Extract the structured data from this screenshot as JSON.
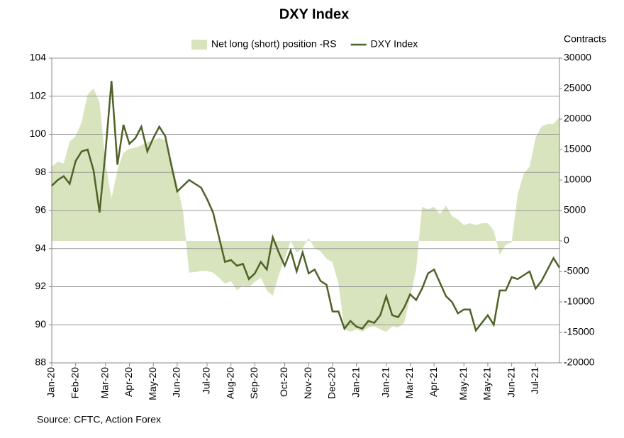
{
  "chart_data": {
    "type": "line",
    "title": "DXY Index",
    "y2_label": "Contracts",
    "source": "Source: CFTC, Action Forex",
    "legend": "top",
    "categories": [
      "Jan-20",
      null,
      null,
      null,
      "Feb-20",
      null,
      null,
      null,
      null,
      "Mar-20",
      null,
      null,
      null,
      "Apr-20",
      null,
      null,
      null,
      "May-20",
      null,
      null,
      null,
      "Jun-20",
      null,
      null,
      null,
      null,
      "Jul-20",
      null,
      null,
      null,
      "Aug-20",
      null,
      null,
      null,
      "Sep-20",
      null,
      null,
      null,
      null,
      "Oct-20",
      null,
      null,
      null,
      "Nov-20",
      null,
      null,
      null,
      "Dec-20",
      null,
      null,
      null,
      "Jan-21",
      null,
      null,
      null,
      null,
      "Jan-21",
      null,
      null,
      null,
      "Mar-21",
      null,
      null,
      null,
      "Apr-21",
      null,
      null,
      null,
      null,
      "May-21",
      null,
      null,
      null,
      "May-21",
      null,
      null,
      null,
      "Jun-21",
      null,
      null,
      null,
      "Jul-21",
      null,
      null,
      null,
      null
    ],
    "series": [
      {
        "name": "Net long (short) position -RS",
        "type": "area",
        "axis": "y2",
        "color": "#d7e4bd",
        "values": [
          12200,
          13000,
          12700,
          16300,
          17200,
          19500,
          24000,
          25000,
          22700,
          12800,
          7000,
          11600,
          14500,
          15100,
          15300,
          15700,
          16300,
          16500,
          16900,
          16500,
          13400,
          9300,
          4700,
          -5200,
          -5100,
          -4900,
          -4900,
          -5200,
          -6000,
          -7000,
          -6600,
          -8100,
          -7300,
          -7600,
          -6700,
          -6000,
          -8100,
          -9000,
          -5600,
          -2900,
          0,
          -1900,
          -1200,
          500,
          -1200,
          -1700,
          -2900,
          -3500,
          -7000,
          -14500,
          -14900,
          -14500,
          -14900,
          -14200,
          -14000,
          -14500,
          -14900,
          -14000,
          -14200,
          -13400,
          -9300,
          -4700,
          5600,
          5200,
          5600,
          4400,
          5800,
          4100,
          3500,
          2600,
          2900,
          2600,
          2900,
          2900,
          1700,
          -2300,
          -600,
          -200,
          7600,
          11000,
          12200,
          16900,
          18800,
          19200,
          19200,
          20300
        ]
      },
      {
        "name": "DXY Index",
        "type": "line",
        "axis": "y",
        "color": "#4f6228",
        "values": [
          97.3,
          97.6,
          97.8,
          97.4,
          98.6,
          99.1,
          99.2,
          98.1,
          95.9,
          99.1,
          102.8,
          98.4,
          100.5,
          99.5,
          99.8,
          100.4,
          99.1,
          99.8,
          100.4,
          99.9,
          98.4,
          97.0,
          97.3,
          97.6,
          97.4,
          97.2,
          96.6,
          95.9,
          94.6,
          93.3,
          93.4,
          93.1,
          93.2,
          92.4,
          92.7,
          93.3,
          92.9,
          94.6,
          93.8,
          93.1,
          93.9,
          92.8,
          93.8,
          92.7,
          92.9,
          92.3,
          92.1,
          90.7,
          90.7,
          89.8,
          90.2,
          89.9,
          89.8,
          90.2,
          90.1,
          90.5,
          91.5,
          90.5,
          90.4,
          90.9,
          91.6,
          91.3,
          91.9,
          92.7,
          92.9,
          92.2,
          91.5,
          91.2,
          90.6,
          90.8,
          90.8,
          89.7,
          90.1,
          90.5,
          90.0,
          91.8,
          91.8,
          92.5,
          92.4,
          92.6,
          92.8,
          91.9,
          92.3,
          92.9,
          93.5,
          93.0
        ]
      }
    ],
    "ylim": [
      88,
      104
    ],
    "yticks": [
      88,
      90,
      92,
      94,
      96,
      98,
      100,
      102,
      104
    ],
    "y2lim": [
      -20000,
      30000
    ],
    "y2ticks": [
      -20000,
      -15000,
      -10000,
      -5000,
      0,
      5000,
      10000,
      15000,
      20000,
      25000,
      30000
    ],
    "grid": true
  }
}
